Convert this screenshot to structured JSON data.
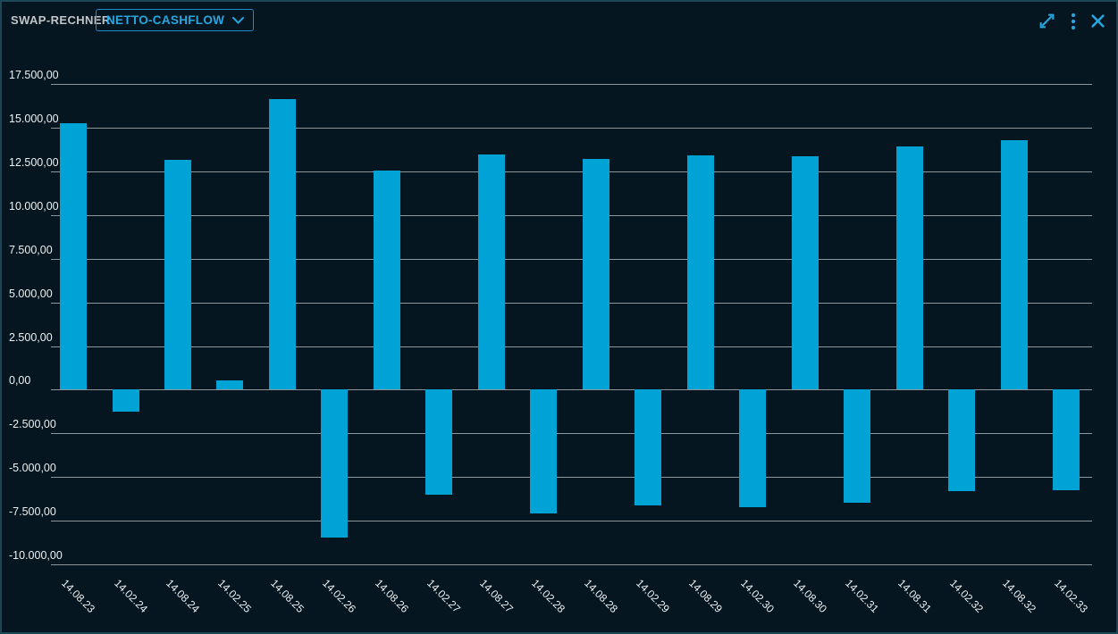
{
  "header": {
    "title": "SWAP-RECHNER",
    "dropdown": {
      "value": "NETTO-CASHFLOW",
      "chevron_icon": "chevron-down-icon"
    },
    "actions": {
      "expand_icon": "expand-icon",
      "menu_icon": "kebab-menu-icon",
      "close_icon": "close-icon"
    }
  },
  "colors": {
    "background": "#051621",
    "panel_border": "#1b4757",
    "accent_blue": "#27a6df",
    "accent_blue_dim": "#1a8cc7",
    "bar_blue": "#00a3d6",
    "grid_line": "#8d969b",
    "axis_label": "#eef1f2",
    "title_grey": "#c2c6ca"
  },
  "chart_data": {
    "type": "bar",
    "title": "",
    "xlabel": "",
    "ylabel": "",
    "categories": [
      "14.08.23",
      "14.02.24",
      "14.08.24",
      "14.02.25",
      "14.08.25",
      "14.02.26",
      "14.08.26",
      "14.02.27",
      "14.08.27",
      "14.02.28",
      "14.08.28",
      "14.02.29",
      "14.08.29",
      "14.02.30",
      "14.08.30",
      "14.02.31",
      "14.08.31",
      "14.02.32",
      "14.08.32",
      "14.02.33"
    ],
    "values": [
      15250,
      -1250,
      13150,
      550,
      16650,
      -8450,
      12550,
      -6000,
      13450,
      -7100,
      13200,
      -6650,
      13400,
      -6750,
      13350,
      -6450,
      13950,
      -5800,
      14300,
      -5750
    ],
    "ylim": [
      -10000,
      17500
    ],
    "y_tick_values": [
      17500,
      15000,
      12500,
      10000,
      7500,
      5000,
      2500,
      0,
      -2500,
      -5000,
      -7500,
      -10000
    ],
    "y_tick_labels": [
      "17.500,00",
      "15.000,00",
      "12.500,00",
      "10.000,00",
      "7.500,00",
      "5.000,00",
      "2.500,00",
      "0,00",
      "-2.500,00",
      "-5.000,00",
      "-7.500,00",
      "-10.000,00"
    ],
    "grid": true,
    "legend": false,
    "number_format": "de-DE"
  }
}
